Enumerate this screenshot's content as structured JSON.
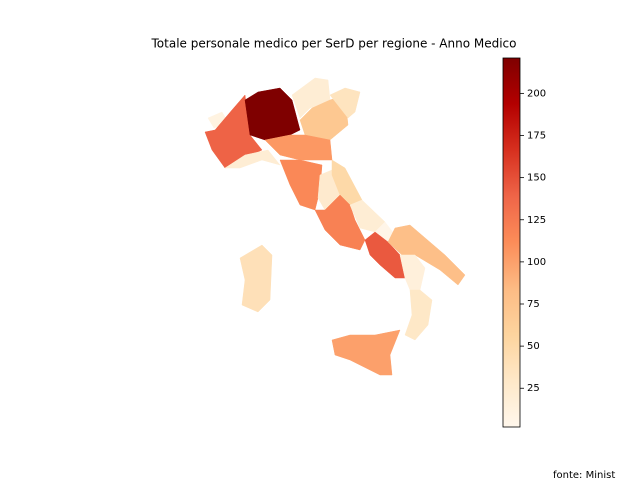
{
  "chart_data": {
    "type": "choropleth",
    "title": "Totale personale medico per SerD per regione - Anno Medico",
    "source": "fonte: Minist",
    "colormap": "OrRd",
    "categories": [
      null,
      null,
      null,
      null,
      null,
      null,
      null,
      null,
      null,
      null,
      null,
      null,
      null,
      null,
      null,
      null,
      null,
      null,
      null,
      null
    ],
    "values": [
      10,
      140,
      221,
      20,
      20,
      70,
      35,
      105,
      115,
      25,
      50,
      120,
      20,
      5,
      145,
      80,
      15,
      30,
      100,
      40
    ],
    "clim": [
      2,
      221
    ],
    "cticks": [
      25,
      50,
      75,
      100,
      125,
      150,
      175,
      200
    ]
  }
}
